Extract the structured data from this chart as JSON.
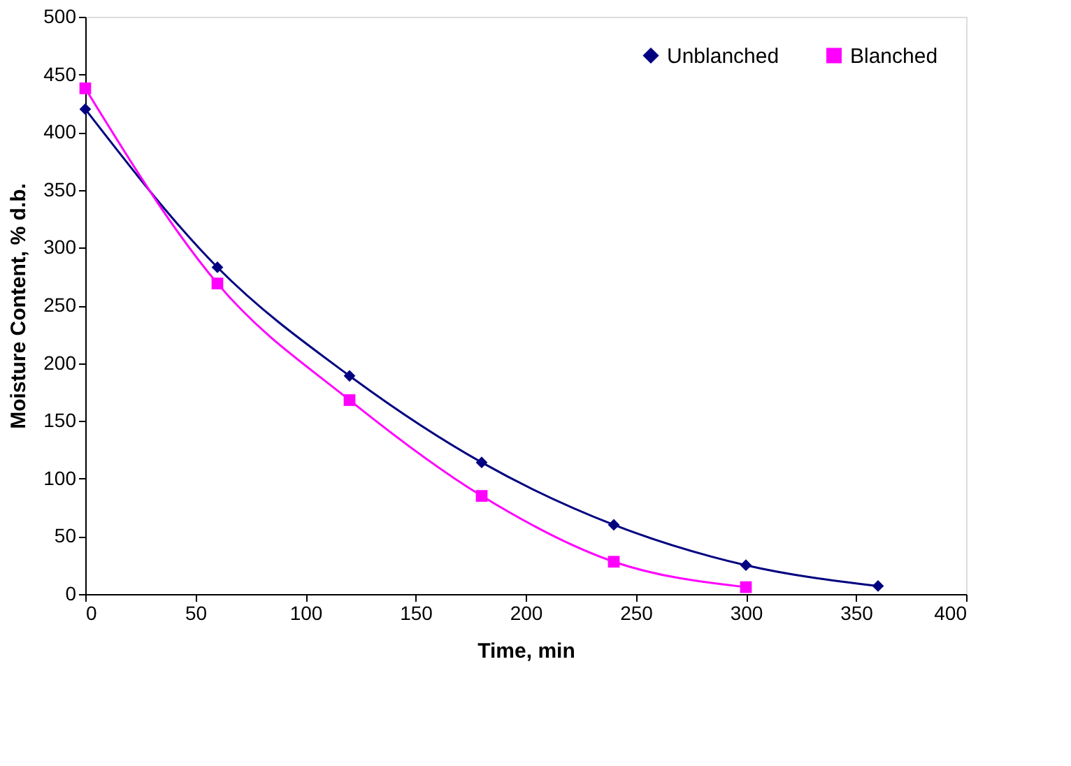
{
  "chart_data": {
    "type": "line",
    "xlabel": "Time, min",
    "ylabel": "Moisture Content, % d.b.",
    "x": [
      0,
      60,
      120,
      180,
      240,
      300,
      360
    ],
    "series": [
      {
        "name": "Unblanched",
        "color": "#000080",
        "marker": "diamond",
        "values": [
          420,
          283,
          189,
          114,
          60,
          25,
          7
        ]
      },
      {
        "name": "Blanched",
        "color": "#ff00ff",
        "marker": "square",
        "values": [
          438,
          269,
          168,
          85,
          28,
          6,
          null
        ]
      }
    ],
    "xlim": [
      0,
      400
    ],
    "xticks": [
      0,
      50,
      100,
      150,
      200,
      250,
      300,
      350,
      400
    ],
    "ylim": [
      0,
      500
    ],
    "yticks": [
      0,
      50,
      100,
      150,
      200,
      250,
      300,
      350,
      400,
      450,
      500
    ],
    "grid": false,
    "legend": "top right",
    "line_style": "solid"
  }
}
